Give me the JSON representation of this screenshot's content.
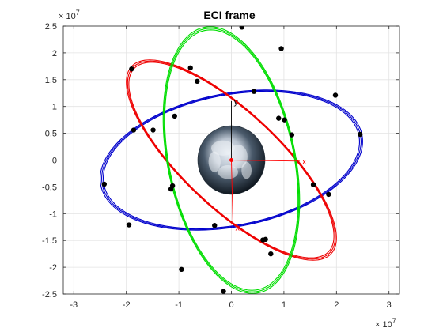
{
  "chart_data": {
    "type": "line",
    "title": "ECI frame",
    "xlabel": "",
    "ylabel": "",
    "xlim": [
      -32000000.0,
      32000000.0
    ],
    "ylim": [
      -25000000.0,
      25000000.0
    ],
    "x_ticks": [
      -3,
      -2,
      -1,
      0,
      1,
      2,
      3
    ],
    "y_ticks": [
      -2.5,
      -2,
      -1.5,
      -1,
      -0.5,
      0,
      0.5,
      1,
      1.5,
      2,
      2.5
    ],
    "x_tick_labels": [
      "-3",
      "-2",
      "-1",
      "0",
      "1",
      "2",
      "3"
    ],
    "y_tick_labels": [
      "-2.5",
      "-2",
      "-1.5",
      "-1",
      "-0.5",
      "0",
      "0.5",
      "1",
      "1.5",
      "2",
      "2.5"
    ],
    "x_exponent": "× 10",
    "x_exponent_power": "7",
    "y_exponent": "× 10",
    "y_exponent_power": "7",
    "grid": true,
    "earth": {
      "radius": 6400000.0
    },
    "frame_axes": [
      {
        "label": "x",
        "end": [
          13000000.0,
          -200000.0
        ],
        "color": "#ff0000"
      },
      {
        "label": "y",
        "end": [
          0.0,
          11000000.0
        ],
        "color": "#000000"
      },
      {
        "label": "x",
        "end": [
          300000.0,
          -12500000.0
        ],
        "color": "#ff0000"
      }
    ],
    "series": [
      {
        "color": "#0000cc",
        "center": [
          0.0,
          0.0
        ],
        "a": 25000000.0,
        "b": 12300000.0,
        "tilt_deg": 10.5,
        "markers_x": [
          24500000.0,
          19800000.0,
          4300000.0,
          -14900000.0,
          -24200000.0,
          -19500000.0,
          -3200000.0,
          15600000.0,
          -18600000.0,
          10100000.0
        ],
        "markers_y": [
          4800000.0,
          12100000.0,
          12800000.0,
          5600000.0,
          -4500000.0,
          -12100000.0,
          -12200000.0,
          -4600000.0,
          5600000.0,
          7500000.0
        ]
      },
      {
        "color": "#ee0000",
        "center": [
          0.0,
          0.0
        ],
        "a": 25500000.0,
        "b": 9000000.0,
        "tilt_deg": -42.5,
        "markers_x": [
          -19000000.0,
          -7800000.0,
          7500000.0,
          18500000.0,
          6500000.0,
          -11500000.0,
          -10800000.0,
          9000000.0
        ],
        "markers_y": [
          17000000.0,
          17200000.0,
          -17500000.0,
          -6400000.0,
          -14800000.0,
          -5400000.0,
          8200000.0,
          7800000.0
        ]
      },
      {
        "color": "#00dd00",
        "center": [
          0.0,
          0.0
        ],
        "a": 25000000.0,
        "b": 12000000.0,
        "tilt_deg": -78,
        "markers_x": [
          2000000.0,
          9500000.0,
          -6500000.0,
          11500000.0,
          -9500000.0,
          -1500000.0,
          6000000.0,
          -11200000.0
        ],
        "markers_y": [
          24800000.0,
          20800000.0,
          14700000.0,
          4700000.0,
          -20400000.0,
          -24500000.0,
          -14900000.0,
          -4800000.0
        ]
      }
    ]
  }
}
